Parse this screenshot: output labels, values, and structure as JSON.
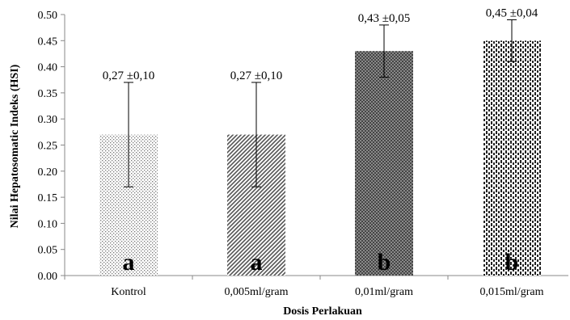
{
  "chart_data": {
    "type": "bar",
    "categories": [
      "Kontrol",
      "0,005ml/gram",
      "0,01ml/gram",
      "0,015ml/gram"
    ],
    "values": [
      0.27,
      0.27,
      0.43,
      0.45
    ],
    "errors": [
      0.1,
      0.1,
      0.05,
      0.04
    ],
    "data_labels": [
      "0,27 ±0,10",
      "0,27 ±0,10",
      "0,43 ±0,05",
      "0,45 ±0,04"
    ],
    "group_letters": [
      "a",
      "a",
      "b",
      "b"
    ],
    "patterns": [
      "dots",
      "diagonal-stripes",
      "crosshatch-dark",
      "vertical-dashes"
    ],
    "xlabel": "Dosis Perlakuan",
    "ylabel": "Nilai Hepatosomatic Indeks (HSI)",
    "ylim": [
      0,
      0.5
    ],
    "yticks": [
      "0.00",
      "0.05",
      "0.10",
      "0.15",
      "0.20",
      "0.25",
      "0.30",
      "0.35",
      "0.40",
      "0.45",
      "0.50"
    ],
    "grid": false,
    "legend": "none"
  }
}
